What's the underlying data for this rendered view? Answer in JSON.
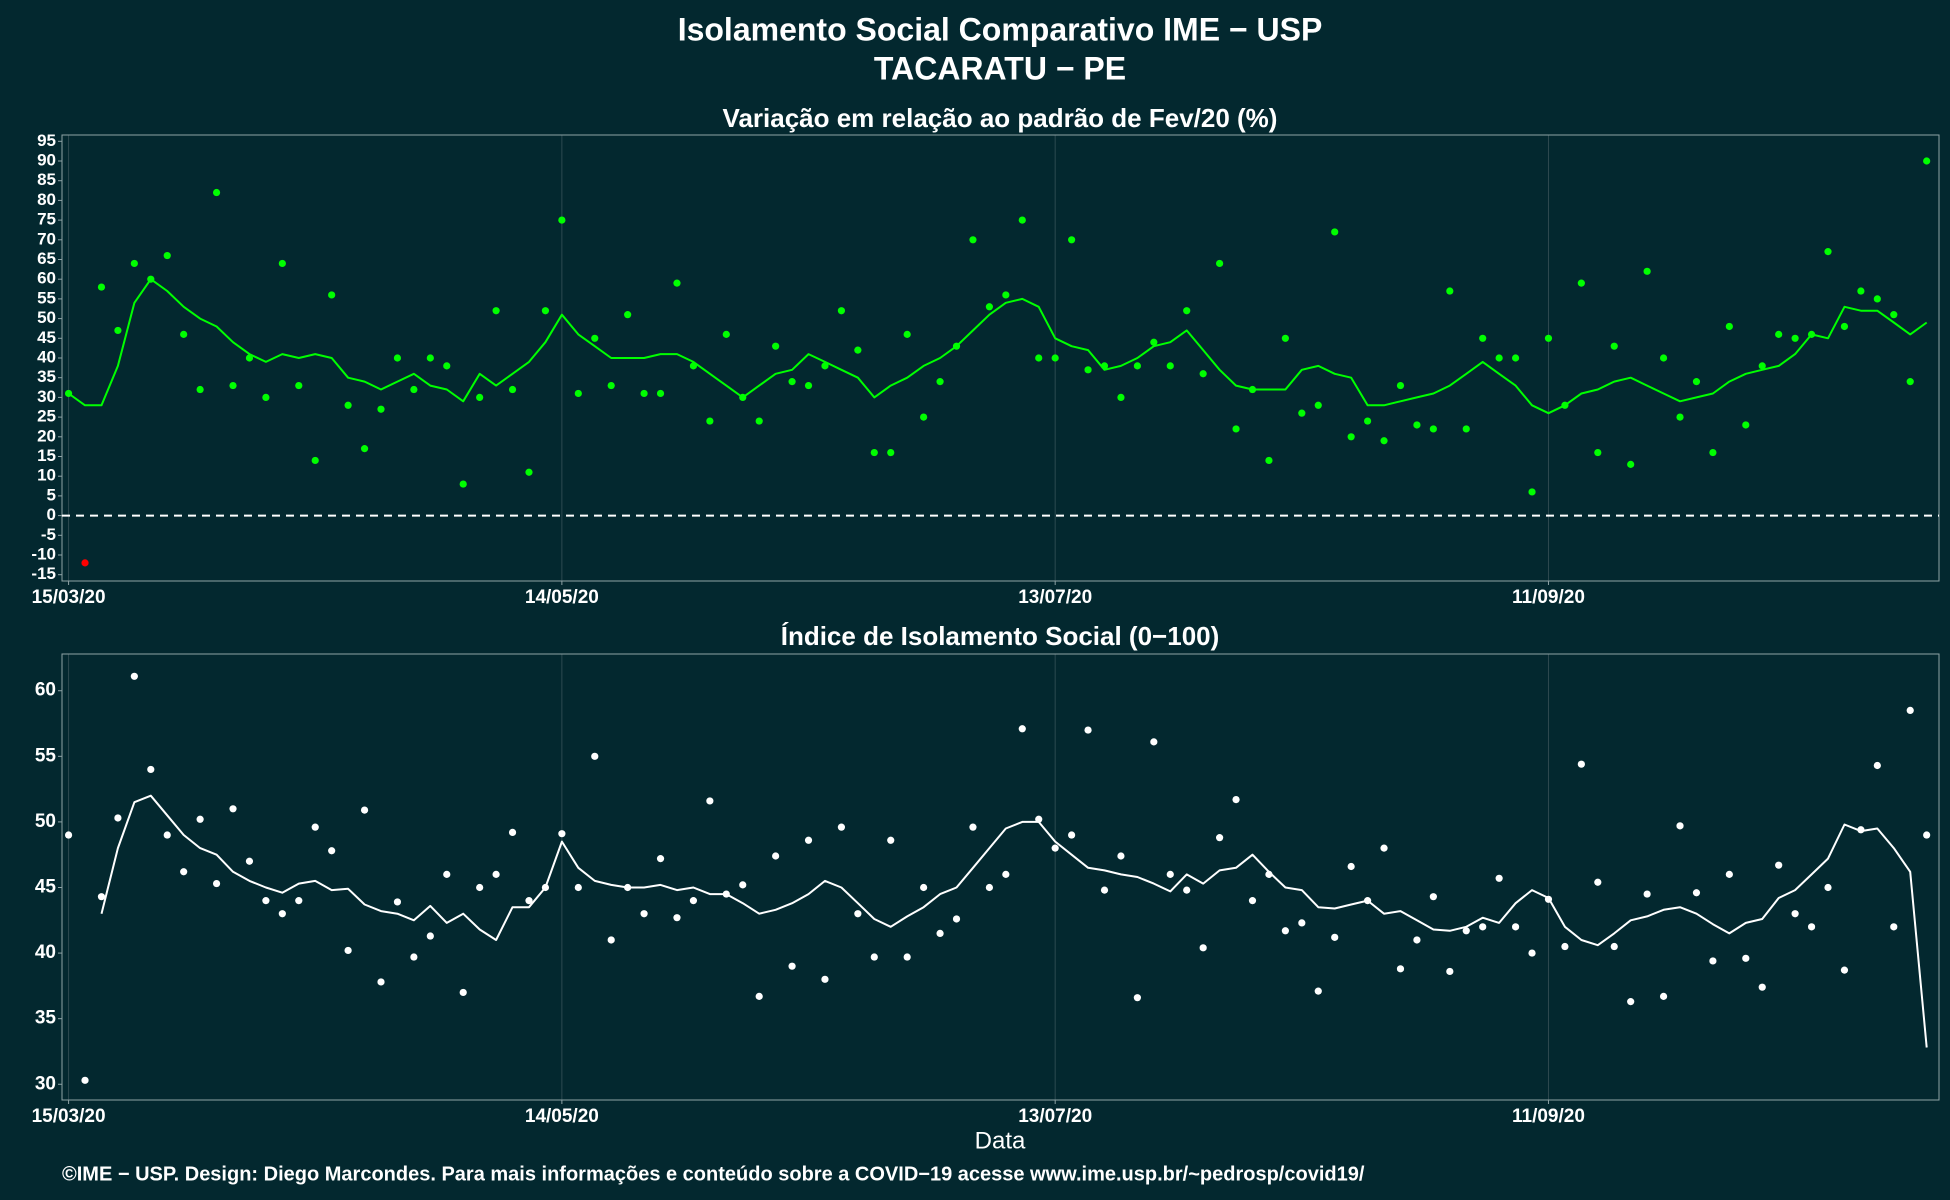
{
  "title": [
    "Isolamento Social Comparativo IME − USP",
    "TACARATU − PE"
  ],
  "footer": "©IME − USP. Design: Diego Marcondes. Para mais informações e conteúdo sobre a COVID−19 acesse www.ime.usp.br/~pedrosp/covid19/",
  "chart_data": [
    {
      "type": "scatter-trend",
      "title": "Variação em relação ao padrão de Fev/20 (%)",
      "x": [
        0,
        2,
        4,
        6,
        8,
        10,
        12,
        14,
        16,
        18,
        20,
        22,
        24,
        26,
        28,
        30,
        32,
        34,
        36,
        38,
        40,
        42,
        44,
        46,
        48,
        50,
        52,
        54,
        56,
        58,
        60,
        62,
        64,
        66,
        68,
        70,
        72,
        74,
        76,
        78,
        80,
        82,
        84,
        86,
        88,
        90,
        92,
        94,
        96,
        98,
        100,
        102,
        104,
        106,
        108,
        110,
        112,
        114,
        116,
        118,
        120,
        122,
        124,
        126,
        128,
        130,
        132,
        134,
        136,
        138,
        140,
        142,
        144,
        146,
        148,
        150,
        152,
        154,
        156,
        158,
        160,
        162,
        164,
        166,
        168,
        170,
        172,
        174,
        176,
        178,
        180,
        182,
        184,
        186,
        188,
        190,
        192,
        194,
        196,
        198,
        200,
        202,
        204,
        206,
        208,
        210,
        212,
        214,
        216,
        218,
        220,
        222,
        224,
        226
      ],
      "points": {
        "color": "#00ff00",
        "negative_color": "#ff0000",
        "values": [
          31,
          -12,
          58,
          47,
          64,
          60,
          66,
          46,
          32,
          82,
          33,
          40,
          30,
          64,
          33,
          14,
          56,
          28,
          17,
          27,
          40,
          32,
          40,
          38,
          8,
          30,
          52,
          32,
          11,
          52,
          75,
          31,
          45,
          33,
          51,
          31,
          31,
          59,
          38,
          24,
          46,
          30,
          24,
          43,
          34,
          33,
          38,
          52,
          42,
          16,
          16,
          46,
          25,
          34,
          43,
          70,
          53,
          56,
          75,
          40,
          40,
          70,
          37,
          38,
          30,
          38,
          44,
          38,
          52,
          36,
          64,
          22,
          32,
          14,
          45,
          26,
          28,
          72,
          20,
          24,
          19,
          33,
          23,
          22,
          57,
          22,
          45,
          40,
          40,
          6,
          45,
          28,
          59,
          16,
          43,
          13,
          62,
          40,
          25,
          34,
          16,
          48,
          23,
          38,
          46,
          45,
          46,
          67,
          48,
          57,
          55,
          51,
          34,
          90
        ]
      },
      "trend": {
        "color": "#00ff00",
        "values": [
          31,
          28,
          28,
          38,
          54,
          60,
          57,
          53,
          50,
          48,
          44,
          41,
          39,
          41,
          40,
          41,
          40,
          35,
          34,
          32,
          34,
          36,
          33,
          32,
          29,
          36,
          33,
          36,
          39,
          44,
          51,
          46,
          43,
          40,
          40,
          40,
          41,
          41,
          39,
          36,
          33,
          30,
          33,
          36,
          37,
          41,
          39,
          37,
          35,
          30,
          33,
          35,
          38,
          40,
          43,
          47,
          51,
          54,
          55,
          53,
          45,
          43,
          42,
          37,
          38,
          40,
          43,
          44,
          47,
          42,
          37,
          33,
          32,
          32,
          32,
          37,
          38,
          36,
          35,
          28,
          28,
          29,
          30,
          31,
          33,
          36,
          39,
          36,
          33,
          28,
          26,
          28,
          31,
          32,
          34,
          35,
          33,
          31,
          29,
          30,
          31,
          34,
          36,
          37,
          38,
          41,
          46,
          45,
          53,
          52,
          52,
          49,
          46,
          49
        ]
      },
      "xlim": [
        -0.8,
        227.5
      ],
      "xticks": [
        {
          "value": 0,
          "label": "15/03/20"
        },
        {
          "value": 60,
          "label": "14/05/20"
        },
        {
          "value": 120,
          "label": "13/07/20"
        },
        {
          "value": 180,
          "label": "11/09/20"
        }
      ],
      "ylim": [
        -16.6,
        96.6
      ],
      "yticks": [
        -15,
        -10,
        -5,
        0,
        5,
        10,
        15,
        20,
        25,
        30,
        35,
        40,
        45,
        50,
        55,
        60,
        65,
        70,
        75,
        80,
        85,
        90,
        95
      ],
      "hline": 0,
      "grid": true
    },
    {
      "type": "scatter-trend",
      "title": "Índice de Isolamento Social (0−100)",
      "xlabel": "Data",
      "x": [
        0,
        2,
        4,
        6,
        8,
        10,
        12,
        14,
        16,
        18,
        20,
        22,
        24,
        26,
        28,
        30,
        32,
        34,
        36,
        38,
        40,
        42,
        44,
        46,
        48,
        50,
        52,
        54,
        56,
        58,
        60,
        62,
        64,
        66,
        68,
        70,
        72,
        74,
        76,
        78,
        80,
        82,
        84,
        86,
        88,
        90,
        92,
        94,
        96,
        98,
        100,
        102,
        104,
        106,
        108,
        110,
        112,
        114,
        116,
        118,
        120,
        122,
        124,
        126,
        128,
        130,
        132,
        134,
        136,
        138,
        140,
        142,
        144,
        146,
        148,
        150,
        152,
        154,
        156,
        158,
        160,
        162,
        164,
        166,
        168,
        170,
        172,
        174,
        176,
        178,
        180,
        182,
        184,
        186,
        188,
        190,
        192,
        194,
        196,
        198,
        200,
        202,
        204,
        206,
        208,
        210,
        212,
        214,
        216,
        218,
        220,
        222,
        224,
        226
      ],
      "points": {
        "color": "#ffffff",
        "values": [
          49,
          30.3,
          44.3,
          50.3,
          61.1,
          54,
          49,
          46.2,
          50.2,
          45.3,
          51,
          47,
          44,
          43,
          44,
          49.6,
          47.8,
          40.2,
          50.9,
          37.8,
          43.9,
          39.7,
          41.3,
          46,
          37,
          45,
          46,
          49.2,
          44,
          45,
          49.1,
          45,
          55,
          41,
          45,
          43,
          47.2,
          42.7,
          44,
          51.6,
          44.5,
          45.2,
          36.7,
          47.4,
          39,
          48.6,
          38,
          49.6,
          43,
          39.7,
          48.6,
          39.7,
          45,
          41.5,
          42.6,
          49.6,
          45,
          46,
          57.1,
          50.2,
          48,
          49,
          57,
          44.8,
          47.4,
          36.6,
          56.1,
          46,
          44.8,
          40.4,
          48.8,
          51.7,
          44,
          46,
          41.7,
          42.3,
          37.1,
          41.2,
          46.6,
          44,
          48,
          38.8,
          41,
          44.3,
          38.6,
          41.7,
          42,
          45.7,
          42,
          40,
          44.1,
          40.5,
          54.4,
          45.4,
          40.5,
          36.3,
          44.5,
          36.7,
          49.7,
          44.6,
          39.4,
          46,
          39.6,
          37.4,
          46.7,
          43,
          42,
          45,
          38.7,
          49.4,
          54.3,
          42,
          58.5,
          49
        ]
      },
      "trend": {
        "color": "#ffffff",
        "values": [
          null,
          null,
          43,
          48,
          51.5,
          52,
          50.5,
          49,
          48,
          47.5,
          46.2,
          45.5,
          45,
          44.6,
          45.3,
          45.5,
          44.8,
          44.9,
          43.7,
          43.2,
          43,
          42.5,
          43.6,
          42.3,
          43,
          41.8,
          41,
          43.5,
          43.5,
          45,
          48.5,
          46.5,
          45.5,
          45.2,
          45,
          45,
          45.2,
          44.8,
          45,
          44.5,
          44.5,
          43.8,
          43,
          43.3,
          43.8,
          44.5,
          45.5,
          45,
          43.8,
          42.6,
          42,
          42.8,
          43.5,
          44.5,
          45,
          46.5,
          48,
          49.5,
          50,
          50,
          48.5,
          47.5,
          46.5,
          46.3,
          46,
          45.8,
          45.3,
          44.7,
          46,
          45.3,
          46.3,
          46.5,
          47.5,
          46.2,
          45,
          44.8,
          43.5,
          43.4,
          43.7,
          44,
          43,
          43.2,
          42.5,
          41.8,
          41.7,
          42,
          42.7,
          42.3,
          43.8,
          44.8,
          44.2,
          42,
          41,
          40.6,
          41.5,
          42.5,
          42.8,
          43.3,
          43.5,
          43,
          42.2,
          41.5,
          42.3,
          42.6,
          44.2,
          44.8,
          46,
          47.2,
          49.8,
          49.3,
          49.5,
          48,
          46.2,
          32.8
        ]
      },
      "xlim": [
        -0.8,
        227.5
      ],
      "xticks": [
        {
          "value": 0,
          "label": "15/03/20"
        },
        {
          "value": 60,
          "label": "14/05/20"
        },
        {
          "value": 120,
          "label": "13/07/20"
        },
        {
          "value": 180,
          "label": "11/09/20"
        }
      ],
      "ylim": [
        28.8,
        62.8
      ],
      "yticks": [
        30,
        35,
        40,
        45,
        50,
        55,
        60
      ],
      "grid": true
    }
  ]
}
